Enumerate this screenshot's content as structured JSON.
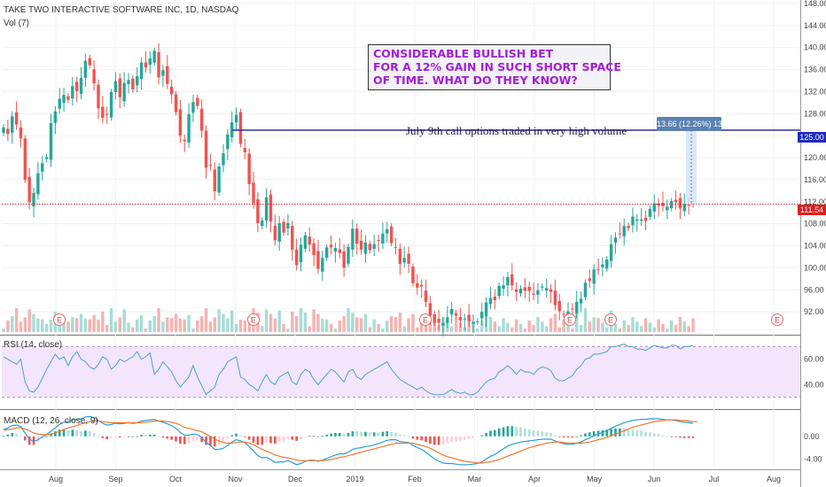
{
  "header": {
    "symbol_line": "TAKE TWO INTERACTIVE SOFTWARE INC, 1D, NASDAQ",
    "volume_label": "Vol (7)"
  },
  "annotations": {
    "callout_lines": [
      "CONSIDERABLE BULLISH BET",
      "FOR A 12% GAIN IN SUCH SHORT SPACE",
      "OF TIME. WHAT DO THEY KNOW?"
    ],
    "note": "July 9th call options traded in very high volume",
    "measure": "13.66 (12.26%) 1366"
  },
  "colors": {
    "up": "#26a69a",
    "down": "#ef5350",
    "hline": "#2b2ea6",
    "rsi_bg": "#f3e5fb",
    "rsi_line": "#4aa0d5",
    "macd_line": "#2a9fd6",
    "signal_line": "#f0772e",
    "last_price": "#e01c1c",
    "hline_tag": "#1f2bbd"
  },
  "chart_data": [
    {
      "type": "candlestick",
      "title": "TAKE TWO INTERACTIVE SOFTWARE INC, 1D, NASDAQ",
      "ylim": [
        88,
        148
      ],
      "y_ticks": [
        "148.00",
        "144.00",
        "140.00",
        "136.00",
        "132.00",
        "128.00",
        "124.00",
        "120.00",
        "116.00",
        "112.00",
        "108.00",
        "104.00",
        "100.00",
        "96.00",
        "92.00"
      ],
      "x_ticks": [
        "Aug",
        "Sep",
        "Oct",
        "Nov",
        "Dec",
        "2019",
        "Feb",
        "Mar",
        "Apr",
        "May",
        "Jun",
        "Jul",
        "Aug"
      ],
      "grid": true,
      "horizontal_line": {
        "value": 125.0,
        "label": "125.00"
      },
      "last_price": {
        "value": 111.54,
        "label": "111.54"
      },
      "earnings_markers": [
        "E",
        "E",
        "E",
        "E",
        "E",
        "E"
      ],
      "series_close": [
        125.5,
        124.3,
        127.5,
        126,
        123.5,
        116,
        111.9,
        113.6,
        117.2,
        119,
        120.1,
        126.3,
        128.4,
        130.7,
        131.4,
        130.5,
        133,
        132.1,
        134.5,
        137.6,
        136.8,
        133.5,
        129,
        127.2,
        127.8,
        131.9,
        133.9,
        131,
        133.6,
        134.1,
        132.4,
        134.8,
        137.3,
        136.4,
        138,
        139.4,
        134.6,
        135.9,
        133.4,
        131.5,
        128.3,
        124,
        123,
        127.9,
        130.1,
        129.4,
        124.9,
        118.2,
        118.6,
        113.9,
        118.4,
        120.8,
        124.2,
        126.4,
        127.8,
        122.5,
        121,
        115.2,
        111.7,
        108.1,
        108.6,
        112.8,
        108.4,
        105,
        108.1,
        106.4,
        108.1,
        103.3,
        100.5,
        104.2,
        105.9,
        104.2,
        102.3,
        99.8,
        101.8,
        103.7,
        103.7,
        103.6,
        102.7,
        100,
        103.8,
        107.1,
        104.4,
        103.3,
        104.6,
        103.2,
        104.3,
        104.9,
        106.2,
        107,
        104.5,
        103.7,
        100.7,
        101.8,
        100.7,
        97.2,
        96.4,
        96.6,
        93.8,
        91.3,
        90,
        90,
        90,
        91,
        92.5,
        91.3,
        90.4,
        90.7,
        90.3,
        90.2,
        90.3,
        92,
        93.7,
        94.5,
        94.1,
        96.7,
        96.8,
        98.3,
        96.8,
        95.6,
        96.2,
        95.8,
        95.8,
        95.1,
        95.9,
        96.6,
        96.3,
        95.6,
        93.2,
        92.1,
        91.5,
        92.1,
        92.5,
        93.8,
        94.4,
        97.3,
        97.6,
        99.7,
        99.6,
        100.6,
        101.5,
        104.3,
        105.5,
        106.2,
        107.6,
        107.2,
        109.3,
        108.8,
        108.8,
        108.5,
        110.7,
        111.7,
        111.3,
        111.2,
        111.1,
        112.1,
        111.9,
        110.8,
        111.5,
        111.3,
        111.5
      ],
      "rsi": {
        "label": "RSI (14, close)",
        "ticks": [
          "60.00",
          "40.00"
        ],
        "ylim": [
          22,
          78
        ],
        "series": [
          62,
          60,
          58,
          56,
          60,
          42,
          35,
          34,
          38,
          45,
          52,
          58,
          64,
          60,
          62,
          55,
          62,
          66,
          60,
          58,
          54,
          52,
          56,
          62,
          60,
          52,
          55,
          60,
          58,
          60,
          62,
          66,
          60,
          62,
          65,
          48,
          52,
          58,
          54,
          50,
          43,
          38,
          42,
          46,
          55,
          46,
          39,
          32,
          35,
          38,
          48,
          52,
          58,
          60,
          62,
          46,
          44,
          40,
          38,
          35,
          42,
          48,
          42,
          40,
          46,
          48,
          50,
          42,
          40,
          48,
          52,
          50,
          44,
          40,
          44,
          48,
          52,
          50,
          46,
          42,
          50,
          52,
          46,
          44,
          48,
          50,
          52,
          54,
          56,
          58,
          52,
          48,
          44,
          42,
          40,
          38,
          36,
          38,
          35,
          33,
          32,
          32,
          32,
          34,
          36,
          34,
          33,
          34,
          32,
          32,
          34,
          38,
          42,
          44,
          45,
          50,
          52,
          55,
          52,
          48,
          52,
          50,
          50,
          48,
          52,
          54,
          53,
          51,
          45,
          43,
          43,
          45,
          47,
          52,
          55,
          60,
          61,
          64,
          64,
          65,
          66,
          70,
          70,
          71,
          72,
          70,
          70,
          68,
          68,
          67,
          69,
          71,
          70,
          69,
          69,
          71,
          71,
          68,
          70,
          70,
          71
        ]
      },
      "macd": {
        "label": "MACD (12, 26, close, 9)",
        "ticks": [
          "0.00",
          "-4.00"
        ],
        "ylim": [
          -5.5,
          4.5
        ],
        "macd_line": [
          1.2,
          1.5,
          1.9,
          2,
          1.7,
          0.6,
          -0.5,
          -0.9,
          -0.6,
          -0.1,
          0.3,
          0.9,
          1.5,
          2.1,
          2.5,
          2.6,
          2.9,
          3,
          3.1,
          3.4,
          3.5,
          3.3,
          2.8,
          2.3,
          2,
          2.1,
          2.3,
          2.2,
          2.3,
          2.4,
          2.3,
          2.4,
          2.7,
          2.8,
          2.9,
          3,
          2.7,
          2.5,
          2.2,
          1.9,
          1.4,
          0.7,
          0.2,
          0.2,
          0.4,
          0.3,
          -0.2,
          -1.1,
          -1.6,
          -2.3,
          -2.3,
          -2.1,
          -1.6,
          -1,
          -0.6,
          -0.8,
          -1.1,
          -1.8,
          -2.6,
          -3.4,
          -3.8,
          -3.7,
          -4.1,
          -4.6,
          -4.5,
          -4.5,
          -4.3,
          -4.6,
          -5,
          -4.8,
          -4.4,
          -4.2,
          -4.2,
          -4.4,
          -4.2,
          -3.9,
          -3.6,
          -3.3,
          -3.1,
          -3.1,
          -2.8,
          -2.3,
          -2.1,
          -2,
          -1.8,
          -1.7,
          -1.5,
          -1.3,
          -1,
          -0.7,
          -0.6,
          -0.6,
          -0.9,
          -1,
          -1.1,
          -1.6,
          -2,
          -2.3,
          -2.8,
          -3.4,
          -4,
          -4.4,
          -4.7,
          -4.8,
          -4.8,
          -4.9,
          -5,
          -5,
          -5,
          -4.9,
          -4.8,
          -4.5,
          -4,
          -3.5,
          -3.2,
          -2.7,
          -2.2,
          -1.7,
          -1.4,
          -1.2,
          -1,
          -0.9,
          -0.8,
          -0.7,
          -0.6,
          -0.5,
          -0.5,
          -0.5,
          -0.8,
          -1.1,
          -1.3,
          -1.4,
          -1.4,
          -1.2,
          -1,
          -0.6,
          -0.3,
          0.1,
          0.4,
          0.7,
          1,
          1.4,
          1.8,
          2.1,
          2.4,
          2.6,
          2.8,
          2.9,
          3,
          3,
          3.1,
          3.1,
          3.1,
          3,
          2.9,
          2.9,
          2.8,
          2.6,
          2.5,
          2.4,
          2.3
        ],
        "signal_line": [
          1.1,
          1.2,
          1.3,
          1.5,
          1.5,
          1.3,
          1,
          0.6,
          0.4,
          0.3,
          0.3,
          0.4,
          0.6,
          0.9,
          1.2,
          1.5,
          1.7,
          1.9,
          2.2,
          2.4,
          2.6,
          2.7,
          2.7,
          2.6,
          2.5,
          2.4,
          2.4,
          2.4,
          2.4,
          2.4,
          2.4,
          2.4,
          2.4,
          2.5,
          2.6,
          2.7,
          2.7,
          2.7,
          2.6,
          2.5,
          2.3,
          2,
          1.6,
          1.4,
          1.2,
          1,
          0.8,
          0.4,
          0,
          -0.5,
          -0.8,
          -1.1,
          -1.2,
          -1.2,
          -1.1,
          -1,
          -1,
          -1.2,
          -1.5,
          -1.9,
          -2.3,
          -2.6,
          -2.9,
          -3.3,
          -3.5,
          -3.7,
          -3.8,
          -4,
          -4.2,
          -4.3,
          -4.3,
          -4.3,
          -4.3,
          -4.3,
          -4.3,
          -4.2,
          -4.1,
          -3.9,
          -3.7,
          -3.6,
          -3.4,
          -3.2,
          -3,
          -2.8,
          -2.6,
          -2.4,
          -2.2,
          -2,
          -1.8,
          -1.6,
          -1.4,
          -1.2,
          -1.2,
          -1.2,
          -1.2,
          -1.2,
          -1.4,
          -1.6,
          -1.8,
          -2.1,
          -2.5,
          -2.9,
          -3.3,
          -3.6,
          -3.8,
          -4,
          -4.2,
          -4.4,
          -4.5,
          -4.6,
          -4.7,
          -4.7,
          -4.6,
          -4.5,
          -4.3,
          -4.1,
          -3.8,
          -3.5,
          -3.2,
          -2.9,
          -2.6,
          -2.3,
          -2,
          -1.8,
          -1.6,
          -1.4,
          -1.2,
          -1.1,
          -1,
          -1,
          -1.1,
          -1.2,
          -1.2,
          -1.2,
          -1.2,
          -1.1,
          -1,
          -0.8,
          -0.6,
          -0.4,
          -0.2,
          0.1,
          0.4,
          0.7,
          1,
          1.3,
          1.6,
          1.8,
          2,
          2.2,
          2.4,
          2.6,
          2.7,
          2.8,
          2.9,
          2.9,
          2.9,
          2.8,
          2.8,
          2.7,
          2.6,
          2.6
        ]
      }
    }
  ]
}
